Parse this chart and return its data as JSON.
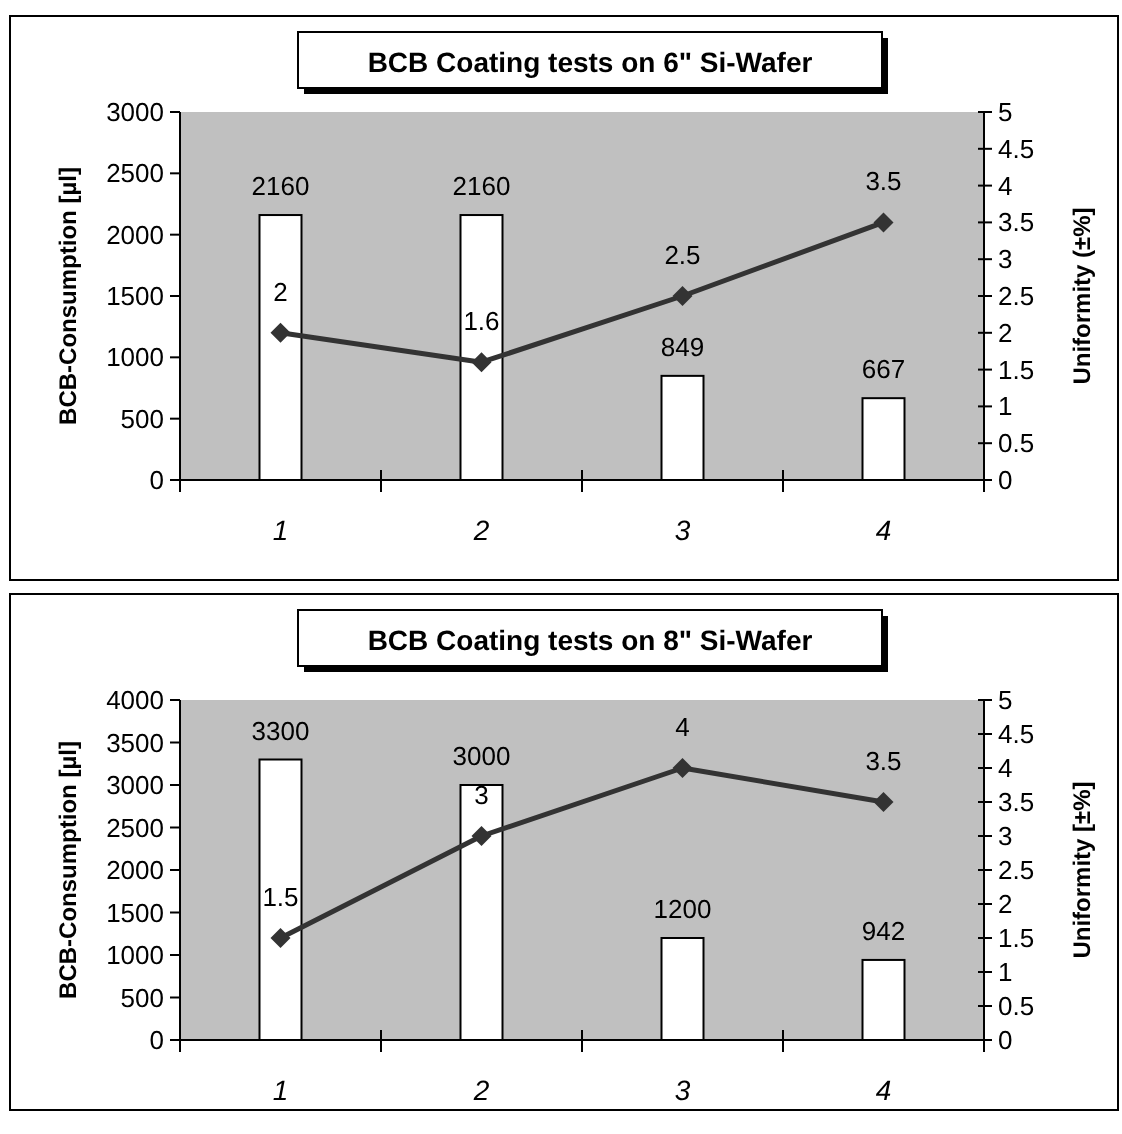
{
  "chart_data": [
    {
      "type": "bar",
      "title": "BCB Coating tests on 6\" Si-Wafer",
      "ylabel": "BCB-Consumption [µl]",
      "y2label": "Uniformity  (±%]",
      "categories": [
        "1",
        "2",
        "3",
        "4"
      ],
      "ylim": [
        0,
        3000
      ],
      "yticks": [
        0,
        500,
        1000,
        1500,
        2000,
        2500,
        3000
      ],
      "y2lim": [
        0,
        5
      ],
      "y2ticks": [
        0,
        0.5,
        1,
        1.5,
        2,
        2.5,
        3,
        3.5,
        4,
        4.5,
        5
      ],
      "data_labels": true,
      "series": [
        {
          "color": "#ffffff",
          "values": [
            2160,
            2160,
            849,
            667
          ]
        },
        {
          "type": "line",
          "axis": "y2",
          "color": "#333333",
          "marker": "diamond",
          "line_style": "solid",
          "values": [
            2,
            1.6,
            2.5,
            3.5
          ]
        }
      ]
    },
    {
      "type": "bar",
      "title": "BCB Coating tests on 8\" Si-Wafer",
      "ylabel": "BCB-Consumption [µl]",
      "y2label": "Uniformity  [±%]",
      "categories": [
        "1",
        "2",
        "3",
        "4"
      ],
      "ylim": [
        0,
        4000
      ],
      "yticks": [
        0,
        500,
        1000,
        1500,
        2000,
        2500,
        3000,
        3500,
        4000
      ],
      "y2lim": [
        0,
        5
      ],
      "y2ticks": [
        0,
        0.5,
        1,
        1.5,
        2,
        2.5,
        3,
        3.5,
        4,
        4.5,
        5
      ],
      "data_labels": true,
      "series": [
        {
          "color": "#ffffff",
          "values": [
            3300,
            3000,
            1200,
            942
          ]
        },
        {
          "type": "line",
          "axis": "y2",
          "color": "#333333",
          "marker": "diamond",
          "line_style": "solid",
          "values": [
            1.5,
            3,
            4,
            3.5
          ]
        }
      ]
    }
  ]
}
